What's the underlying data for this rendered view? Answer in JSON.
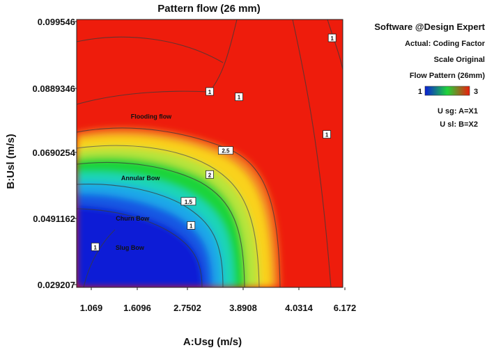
{
  "chart_data": {
    "type": "contour",
    "title": "Pattern flow (26 mm)",
    "xlabel": "A:Usg (m/s)",
    "ylabel": "B:Usl (m/s)",
    "x_ticks": [
      "1.069",
      "1.6096",
      "2.7502",
      "3.8908",
      "4.0314",
      "6.172"
    ],
    "y_ticks": [
      "0.029207",
      "0.0491162",
      "0.0690254",
      "0.0889346",
      "0.099546"
    ],
    "zlim": [
      1,
      3
    ],
    "colors": {
      "low": "#0a1fd6",
      "mid": "#1fd43a",
      "high": "#ee1c0c"
    },
    "contour_labels": [
      {
        "value": "1",
        "x": 0.96,
        "y": 0.93
      },
      {
        "value": "1",
        "x": 0.5,
        "y": 0.73
      },
      {
        "value": "1",
        "x": 0.61,
        "y": 0.71
      },
      {
        "value": "1",
        "x": 0.94,
        "y": 0.57
      },
      {
        "value": "2.5",
        "x": 0.56,
        "y": 0.51
      },
      {
        "value": "2",
        "x": 0.5,
        "y": 0.42
      },
      {
        "value": "1.5",
        "x": 0.42,
        "y": 0.32
      },
      {
        "value": "1",
        "x": 0.43,
        "y": 0.23
      },
      {
        "value": "1",
        "x": 0.07,
        "y": 0.15
      }
    ],
    "regions": [
      {
        "name": "Flooding flow",
        "x": 0.28,
        "y": 0.63
      },
      {
        "name": "Annular Bow",
        "x": 0.24,
        "y": 0.4
      },
      {
        "name": "Churn Bow",
        "x": 0.21,
        "y": 0.25
      },
      {
        "name": "Slug Bow",
        "x": 0.2,
        "y": 0.14
      }
    ]
  },
  "side_panel": {
    "title": "Software @Design Expert",
    "lines": [
      "Actual: Coding Factor",
      "Scale Original",
      "Flow Pattern (26mm)"
    ],
    "legend_min": "1",
    "legend_max": "3",
    "mapping": [
      "U sg: A=X1",
      "U sl: B=X2"
    ]
  }
}
